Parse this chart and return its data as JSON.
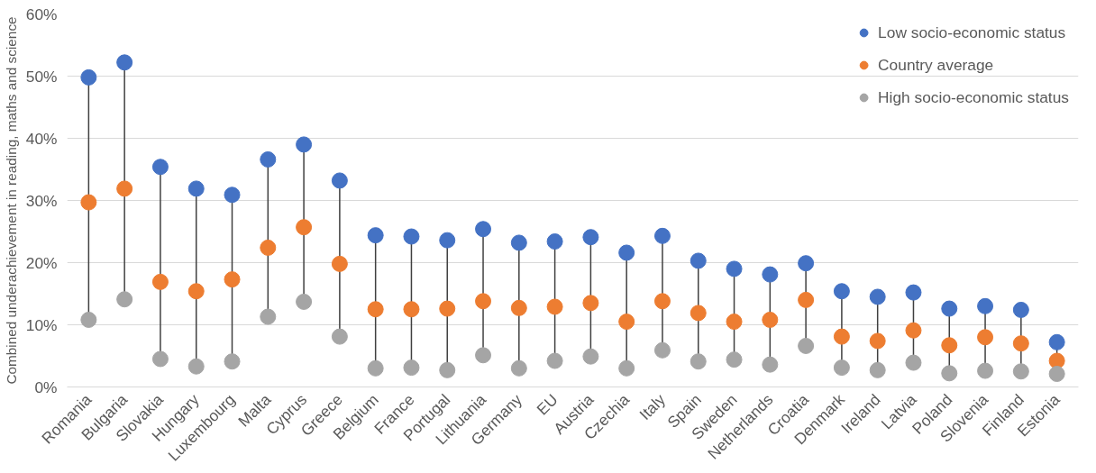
{
  "chart_data": {
    "type": "scatter",
    "ylabel": "Combined underachievement in reading, maths and science",
    "categories": [
      "Romania",
      "Bulgaria",
      "Slovakia",
      "Hungary",
      "Luxembourg",
      "Malta",
      "Cyprus",
      "Greece",
      "Belgium",
      "France",
      "Portugal",
      "Lithuania",
      "Germany",
      "EU",
      "Austria",
      "Czechia",
      "Italy",
      "Spain",
      "Sweden",
      "Netherlands",
      "Croatia",
      "Denmark",
      "Ireland",
      "Latvia",
      "Poland",
      "Slovenia",
      "Finland",
      "Estonia"
    ],
    "series": [
      {
        "name": "Low socio-economic status",
        "color": "#4472c4",
        "values": [
          49.8,
          52.2,
          35.4,
          31.9,
          30.9,
          36.6,
          39.0,
          33.2,
          24.4,
          24.2,
          23.6,
          25.4,
          23.2,
          23.4,
          24.1,
          21.6,
          24.3,
          20.3,
          19.0,
          18.1,
          19.9,
          15.4,
          14.5,
          15.2,
          12.6,
          13.0,
          12.4,
          7.2
        ]
      },
      {
        "name": "Country average",
        "color": "#ed7d31",
        "values": [
          29.7,
          31.9,
          16.9,
          15.4,
          17.3,
          22.4,
          25.7,
          19.8,
          12.5,
          12.5,
          12.6,
          13.8,
          12.7,
          12.9,
          13.5,
          10.5,
          13.8,
          11.9,
          10.5,
          10.8,
          14.0,
          8.1,
          7.4,
          9.1,
          6.7,
          8.0,
          7.0,
          4.2
        ]
      },
      {
        "name": "High socio-economic status",
        "color": "#a5a5a5",
        "values": [
          10.8,
          14.1,
          4.5,
          3.3,
          4.1,
          11.3,
          13.7,
          8.1,
          3.0,
          3.1,
          2.7,
          5.1,
          3.0,
          4.2,
          4.9,
          3.0,
          5.9,
          4.1,
          4.4,
          3.6,
          6.6,
          3.1,
          2.7,
          3.9,
          2.2,
          2.6,
          2.5,
          2.1
        ]
      }
    ],
    "ylim": [
      0,
      60
    ],
    "yticks": [
      {
        "value": 0,
        "label": "0%"
      },
      {
        "value": 10,
        "label": "10%"
      },
      {
        "value": 20,
        "label": "20%"
      },
      {
        "value": 30,
        "label": "30%"
      },
      {
        "value": 40,
        "label": "40%"
      },
      {
        "value": 50,
        "label": "50%"
      },
      {
        "value": 60,
        "label": "60%"
      }
    ],
    "grid": "y",
    "legend": "top right",
    "marker": "circle"
  }
}
